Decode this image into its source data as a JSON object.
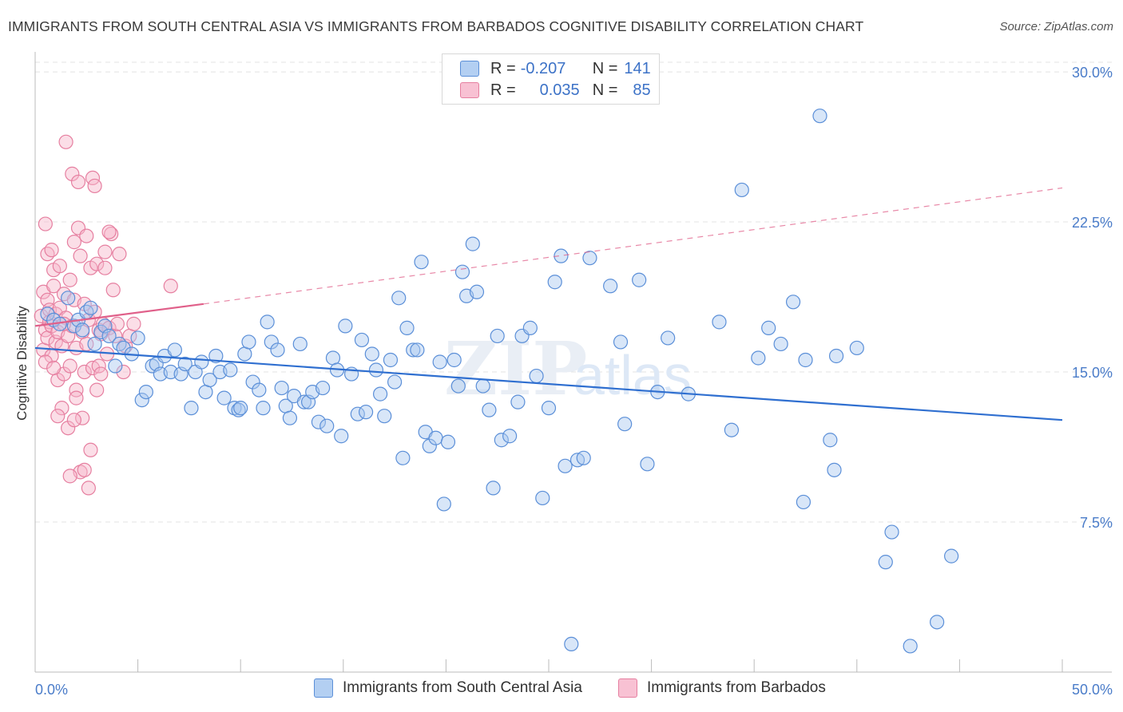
{
  "title": "IMMIGRANTS FROM SOUTH CENTRAL ASIA VS IMMIGRANTS FROM BARBADOS COGNITIVE DISABILITY CORRELATION CHART",
  "source": "Source: ZipAtlas.com",
  "watermark": {
    "zip": "ZIP",
    "atlas": "atlas"
  },
  "legend": {
    "r_label": "R =",
    "n_label": "N =",
    "rows": [
      {
        "r": "-0.207",
        "n": "141"
      },
      {
        "r": "0.035",
        "n": "85"
      }
    ]
  },
  "colors": {
    "blue_fill": "#a9c8f0",
    "blue_stroke": "#5b8fd8",
    "blue_line": "#2f6fd0",
    "pink_fill": "#f6b6c9",
    "pink_stroke": "#e67fa0",
    "pink_line": "#e0608a",
    "grid": "#e3e3e3"
  },
  "chart_data": {
    "type": "scatter",
    "title": "IMMIGRANTS FROM SOUTH CENTRAL ASIA VS IMMIGRANTS FROM BARBADOS COGNITIVE DISABILITY CORRELATION CHART",
    "ylabel": "Cognitive Disability",
    "xlabel": "",
    "xlim": [
      0,
      50
    ],
    "ylim": [
      0,
      31
    ],
    "x_tick_labels": [
      "0.0%",
      "50.0%"
    ],
    "y_ticks": [
      7.5,
      15.0,
      22.5,
      30.0
    ],
    "y_tick_labels": [
      "7.5%",
      "15.0%",
      "22.5%",
      "30.0%"
    ],
    "series": [
      {
        "name": "Immigrants from South Central Asia",
        "color": "blue",
        "trend": {
          "x": [
            0,
            50
          ],
          "y": [
            16.2,
            12.6
          ],
          "dashed_extension": false
        },
        "points": [
          [
            0.6,
            17.9
          ],
          [
            0.9,
            17.6
          ],
          [
            1.2,
            17.4
          ],
          [
            1.6,
            18.7
          ],
          [
            1.9,
            17.3
          ],
          [
            2.1,
            17.6
          ],
          [
            2.3,
            17.1
          ],
          [
            2.5,
            18.0
          ],
          [
            2.7,
            18.2
          ],
          [
            2.9,
            16.4
          ],
          [
            3.2,
            17.0
          ],
          [
            3.4,
            17.3
          ],
          [
            3.6,
            16.8
          ],
          [
            3.9,
            15.3
          ],
          [
            4.1,
            16.4
          ],
          [
            4.3,
            16.2
          ],
          [
            4.7,
            15.9
          ],
          [
            5.0,
            16.7
          ],
          [
            5.2,
            13.6
          ],
          [
            5.4,
            14.0
          ],
          [
            5.7,
            15.3
          ],
          [
            5.9,
            15.4
          ],
          [
            6.1,
            14.9
          ],
          [
            6.3,
            15.8
          ],
          [
            6.6,
            15.0
          ],
          [
            6.8,
            16.1
          ],
          [
            7.1,
            14.9
          ],
          [
            7.3,
            15.4
          ],
          [
            7.6,
            13.2
          ],
          [
            7.8,
            15.0
          ],
          [
            8.1,
            15.5
          ],
          [
            8.3,
            14.0
          ],
          [
            8.5,
            14.6
          ],
          [
            8.8,
            15.8
          ],
          [
            9.0,
            15.0
          ],
          [
            9.2,
            13.7
          ],
          [
            9.5,
            15.1
          ],
          [
            9.7,
            13.2
          ],
          [
            9.9,
            13.1
          ],
          [
            10.2,
            15.9
          ],
          [
            10.4,
            16.5
          ],
          [
            10.6,
            14.5
          ],
          [
            10.9,
            14.1
          ],
          [
            11.1,
            13.2
          ],
          [
            11.3,
            17.5
          ],
          [
            11.5,
            16.5
          ],
          [
            11.8,
            16.1
          ],
          [
            12.0,
            14.2
          ],
          [
            12.2,
            13.3
          ],
          [
            12.4,
            12.7
          ],
          [
            12.6,
            13.8
          ],
          [
            12.9,
            16.4
          ],
          [
            13.1,
            13.5
          ],
          [
            13.3,
            13.5
          ],
          [
            13.5,
            14.0
          ],
          [
            13.8,
            12.5
          ],
          [
            14.0,
            14.2
          ],
          [
            14.2,
            12.3
          ],
          [
            14.5,
            15.7
          ],
          [
            14.7,
            15.1
          ],
          [
            14.9,
            11.8
          ],
          [
            15.1,
            17.3
          ],
          [
            15.4,
            14.9
          ],
          [
            15.7,
            12.9
          ],
          [
            15.9,
            16.6
          ],
          [
            16.1,
            13.0
          ],
          [
            16.4,
            15.9
          ],
          [
            16.6,
            15.1
          ],
          [
            16.8,
            13.9
          ],
          [
            17.0,
            12.8
          ],
          [
            17.3,
            15.6
          ],
          [
            17.5,
            14.5
          ],
          [
            17.7,
            18.7
          ],
          [
            17.9,
            10.7
          ],
          [
            18.1,
            17.2
          ],
          [
            18.4,
            16.1
          ],
          [
            18.6,
            16.1
          ],
          [
            18.8,
            20.5
          ],
          [
            19.0,
            12.0
          ],
          [
            19.2,
            11.3
          ],
          [
            19.5,
            11.7
          ],
          [
            19.7,
            15.5
          ],
          [
            19.9,
            8.4
          ],
          [
            20.1,
            11.5
          ],
          [
            20.4,
            15.6
          ],
          [
            20.6,
            14.3
          ],
          [
            20.8,
            20.0
          ],
          [
            21.0,
            18.8
          ],
          [
            21.3,
            21.4
          ],
          [
            21.5,
            19.0
          ],
          [
            21.8,
            14.3
          ],
          [
            22.1,
            13.1
          ],
          [
            22.3,
            9.2
          ],
          [
            22.5,
            16.8
          ],
          [
            22.7,
            11.6
          ],
          [
            23.1,
            11.8
          ],
          [
            23.5,
            13.5
          ],
          [
            23.7,
            16.8
          ],
          [
            24.1,
            17.2
          ],
          [
            24.4,
            14.8
          ],
          [
            24.7,
            8.7
          ],
          [
            25.0,
            13.2
          ],
          [
            25.3,
            19.5
          ],
          [
            25.6,
            20.8
          ],
          [
            25.8,
            10.3
          ],
          [
            26.1,
            1.4
          ],
          [
            26.4,
            10.6
          ],
          [
            26.7,
            10.7
          ],
          [
            27.0,
            20.7
          ],
          [
            28.0,
            19.3
          ],
          [
            28.5,
            16.5
          ],
          [
            28.7,
            12.4
          ],
          [
            29.4,
            19.6
          ],
          [
            29.8,
            10.4
          ],
          [
            30.0,
            29.5
          ],
          [
            30.3,
            14.0
          ],
          [
            30.8,
            16.7
          ],
          [
            31.8,
            13.9
          ],
          [
            33.3,
            17.5
          ],
          [
            33.9,
            12.1
          ],
          [
            34.4,
            24.1
          ],
          [
            35.2,
            15.7
          ],
          [
            35.7,
            17.2
          ],
          [
            36.3,
            16.4
          ],
          [
            36.9,
            18.5
          ],
          [
            37.4,
            8.5
          ],
          [
            37.5,
            15.6
          ],
          [
            38.2,
            27.8
          ],
          [
            38.7,
            11.6
          ],
          [
            38.9,
            10.1
          ],
          [
            39.0,
            15.8
          ],
          [
            40.0,
            16.2
          ],
          [
            41.7,
            7.0
          ],
          [
            41.4,
            5.5
          ],
          [
            42.6,
            1.3
          ],
          [
            43.9,
            2.5
          ],
          [
            44.6,
            5.8
          ],
          [
            10.0,
            13.2
          ]
        ]
      },
      {
        "name": "Immigrants from Barbados",
        "color": "pink",
        "trend": {
          "x": [
            0,
            8.2
          ],
          "y": [
            17.3,
            18.4
          ],
          "dashed_extension": true,
          "dashed_to": [
            50,
            24.2
          ]
        },
        "points": [
          [
            0.3,
            17.8
          ],
          [
            0.4,
            19.0
          ],
          [
            0.4,
            16.1
          ],
          [
            0.5,
            17.1
          ],
          [
            0.5,
            22.4
          ],
          [
            0.6,
            18.6
          ],
          [
            0.6,
            16.7
          ],
          [
            0.7,
            18.1
          ],
          [
            0.7,
            17.5
          ],
          [
            0.8,
            15.8
          ],
          [
            0.8,
            17.3
          ],
          [
            0.9,
            19.3
          ],
          [
            0.9,
            20.1
          ],
          [
            1.0,
            17.9
          ],
          [
            1.0,
            16.5
          ],
          [
            1.1,
            14.6
          ],
          [
            1.1,
            17.0
          ],
          [
            1.2,
            20.3
          ],
          [
            1.2,
            18.2
          ],
          [
            1.3,
            16.3
          ],
          [
            1.3,
            13.2
          ],
          [
            1.4,
            14.9
          ],
          [
            1.4,
            18.9
          ],
          [
            1.5,
            17.7
          ],
          [
            1.5,
            26.5
          ],
          [
            1.6,
            16.8
          ],
          [
            1.6,
            12.2
          ],
          [
            1.7,
            19.6
          ],
          [
            1.7,
            15.3
          ],
          [
            1.8,
            24.9
          ],
          [
            1.8,
            17.3
          ],
          [
            1.9,
            21.5
          ],
          [
            1.9,
            18.6
          ],
          [
            2.0,
            14.1
          ],
          [
            2.0,
            16.2
          ],
          [
            2.1,
            24.5
          ],
          [
            2.1,
            22.2
          ],
          [
            2.2,
            20.8
          ],
          [
            2.2,
            10.0
          ],
          [
            2.3,
            17.0
          ],
          [
            2.3,
            12.7
          ],
          [
            2.4,
            18.4
          ],
          [
            2.4,
            15.0
          ],
          [
            2.5,
            16.4
          ],
          [
            2.5,
            21.8
          ],
          [
            2.6,
            9.2
          ],
          [
            2.6,
            17.6
          ],
          [
            2.7,
            11.1
          ],
          [
            2.7,
            20.2
          ],
          [
            2.8,
            24.7
          ],
          [
            2.8,
            15.2
          ],
          [
            2.9,
            24.3
          ],
          [
            2.9,
            18.0
          ],
          [
            3.0,
            14.1
          ],
          [
            3.0,
            20.4
          ],
          [
            3.1,
            17.1
          ],
          [
            3.1,
            15.3
          ],
          [
            3.2,
            16.9
          ],
          [
            3.2,
            14.9
          ],
          [
            3.3,
            17.4
          ],
          [
            3.4,
            21.0
          ],
          [
            3.4,
            20.2
          ],
          [
            3.5,
            15.9
          ],
          [
            3.6,
            17.2
          ],
          [
            3.7,
            21.9
          ],
          [
            3.8,
            19.1
          ],
          [
            3.9,
            16.8
          ],
          [
            4.0,
            17.4
          ],
          [
            4.1,
            20.9
          ],
          [
            4.3,
            15.0
          ],
          [
            4.4,
            16.3
          ],
          [
            4.6,
            16.8
          ],
          [
            4.8,
            17.4
          ],
          [
            6.6,
            19.3
          ],
          [
            1.7,
            9.8
          ],
          [
            2.4,
            10.1
          ],
          [
            1.1,
            12.8
          ],
          [
            0.6,
            20.9
          ],
          [
            0.8,
            21.1
          ],
          [
            1.4,
            17.4
          ],
          [
            0.5,
            15.5
          ],
          [
            2.0,
            13.7
          ],
          [
            3.6,
            22.0
          ],
          [
            0.9,
            15.2
          ],
          [
            1.9,
            12.6
          ]
        ]
      }
    ]
  },
  "bottom_legend": [
    {
      "label": "Immigrants from South Central Asia"
    },
    {
      "label": "Immigrants from Barbados"
    }
  ]
}
